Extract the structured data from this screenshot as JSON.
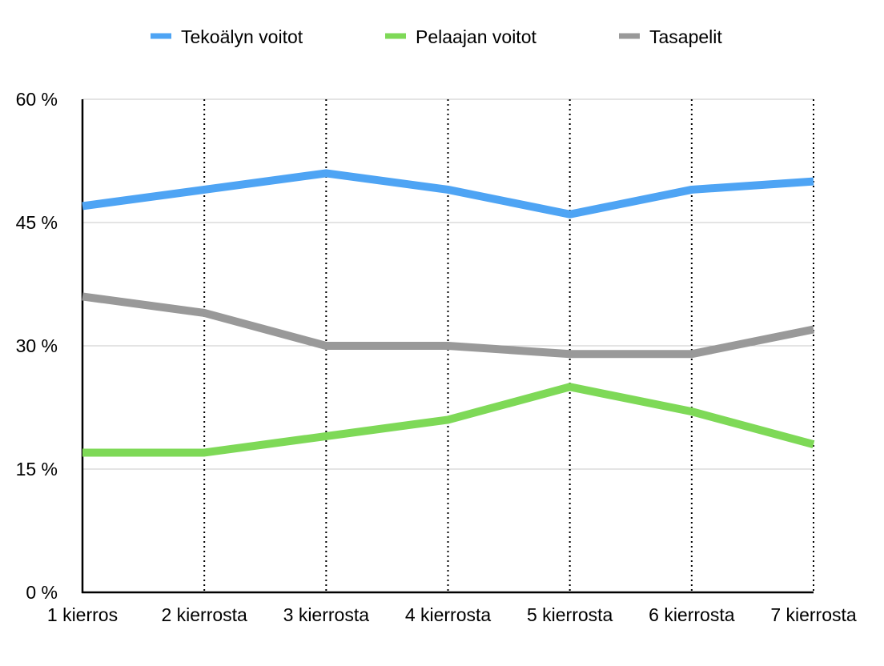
{
  "chart_data": {
    "type": "line",
    "categories": [
      "1 kierros",
      "2 kierrosta",
      "3 kierrosta",
      "4 kierrosta",
      "5 kierrosta",
      "6 kierrosta",
      "7 kierrosta"
    ],
    "series": [
      {
        "name": "Tekoälyn voitot",
        "color": "#4ea4f4",
        "values": [
          47,
          49,
          51,
          49,
          46,
          49,
          50
        ]
      },
      {
        "name": "Pelaajan voitot",
        "color": "#7ed957",
        "values": [
          17,
          17,
          19,
          21,
          25,
          22,
          18
        ]
      },
      {
        "name": "Tasapelit",
        "color": "#999999",
        "values": [
          36,
          34,
          30,
          30,
          29,
          29,
          32
        ]
      }
    ],
    "y_ticks": [
      0,
      15,
      30,
      45,
      60
    ],
    "y_tick_labels": [
      "0 %",
      "15 %",
      "30 %",
      "45 %",
      "60 %"
    ],
    "ylim": [
      0,
      60
    ],
    "grid": true,
    "legend_position": "top-center"
  }
}
